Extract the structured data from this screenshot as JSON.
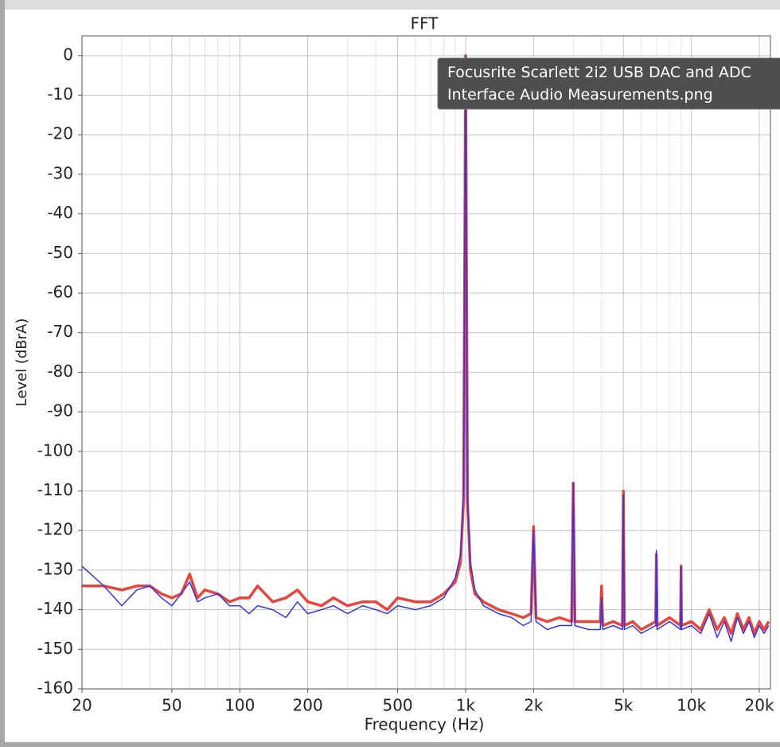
{
  "chart_data": {
    "type": "line",
    "title": "FFT",
    "x_label": "Frequency (Hz)",
    "y_label": "Level (dBrA)",
    "x_scale": "log",
    "grid": true,
    "xlim": [
      20,
      22400
    ],
    "ylim": [
      -160,
      5
    ],
    "xticks": [
      20,
      50,
      100,
      200,
      500,
      {
        "value": 1000,
        "label": "1k"
      },
      {
        "value": 2000,
        "label": "2k"
      },
      {
        "value": 5000,
        "label": "5k"
      },
      {
        "value": 10000,
        "label": "10k"
      },
      {
        "value": 20000,
        "label": "20k"
      }
    ],
    "minor_xticks": [
      30,
      40,
      60,
      70,
      80,
      90,
      300,
      400,
      600,
      700,
      800,
      900,
      3000,
      4000,
      6000,
      7000,
      8000,
      9000
    ],
    "yticks": [
      0,
      -10,
      -20,
      -30,
      -40,
      -50,
      -60,
      -70,
      -80,
      -90,
      -100,
      -110,
      -120,
      -130,
      -140,
      -150,
      -160
    ],
    "x": [
      20,
      25,
      30,
      35,
      40,
      45,
      50,
      55,
      60,
      65,
      70,
      80,
      90,
      100,
      110,
      120,
      140,
      160,
      180,
      200,
      230,
      260,
      300,
      350,
      400,
      450,
      500,
      600,
      700,
      800,
      900,
      950,
      980,
      1000,
      1020,
      1050,
      1100,
      1200,
      1400,
      1600,
      1800,
      1950,
      2000,
      2050,
      2300,
      2600,
      2950,
      3000,
      3050,
      3500,
      3950,
      4000,
      4050,
      4500,
      4950,
      5000,
      5050,
      5500,
      6000,
      6950,
      7000,
      7050,
      8000,
      8950,
      9000,
      9050,
      10000,
      11000,
      12000,
      13000,
      14000,
      15000,
      16000,
      17000,
      18000,
      19000,
      20000,
      21000,
      22000
    ],
    "series": [
      {
        "color": "#e8453c",
        "values": [
          -134,
          -134,
          -135,
          -134,
          -134,
          -136,
          -137,
          -136,
          -131,
          -137,
          -135,
          -136,
          -138,
          -137,
          -137,
          -134,
          -138,
          -137,
          -135,
          -138,
          -139,
          -137,
          -139,
          -138,
          -138,
          -140,
          -137,
          -138,
          -138,
          -136,
          -133,
          -128,
          -112,
          0,
          -113,
          -130,
          -136,
          -138,
          -140,
          -141,
          -142,
          -141,
          -119,
          -142,
          -143,
          -142,
          -143,
          -108,
          -143,
          -143,
          -143,
          -134,
          -144,
          -143,
          -144,
          -110,
          -144,
          -143,
          -145,
          -143,
          -126,
          -144,
          -142,
          -144,
          -129,
          -144,
          -143,
          -145,
          -140,
          -145,
          -142,
          -146,
          -141,
          -145,
          -142,
          -146,
          -143,
          -145,
          -143
        ]
      },
      {
        "color": "#3535e0",
        "values": [
          -129,
          -134,
          -139,
          -135,
          -134,
          -137,
          -139,
          -136,
          -133,
          -138,
          -137,
          -136,
          -139,
          -139,
          -141,
          -139,
          -140,
          -142,
          -138,
          -141,
          -140,
          -139,
          -141,
          -139,
          -140,
          -141,
          -139,
          -140,
          -139,
          -137,
          -132,
          -126,
          -110,
          0,
          -112,
          -128,
          -135,
          -139,
          -141,
          -142,
          -144,
          -143,
          -120,
          -143,
          -145,
          -144,
          -144,
          -108,
          -144,
          -145,
          -145,
          -137,
          -145,
          -144,
          -145,
          -111,
          -145,
          -144,
          -146,
          -144,
          -125,
          -145,
          -143,
          -145,
          -129,
          -145,
          -144,
          -146,
          -141,
          -147,
          -143,
          -148,
          -142,
          -146,
          -143,
          -147,
          -144,
          -146,
          -144
        ]
      }
    ]
  },
  "tooltip": {
    "lines": [
      "Focusrite Scarlett 2i2 USB DAC and ADC",
      "Interface Audio Measurements.png"
    ]
  }
}
